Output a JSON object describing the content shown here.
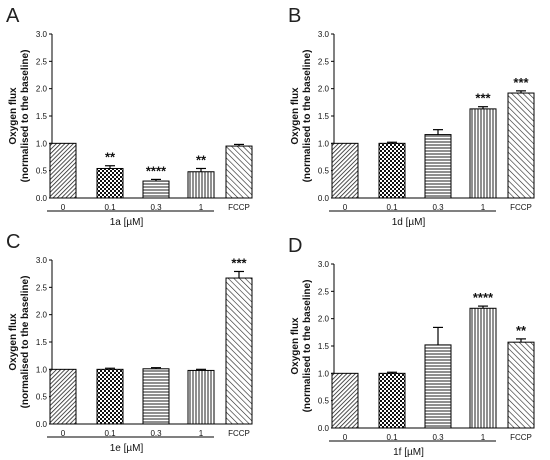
{
  "chart_data": [
    {
      "type": "bar",
      "panel_label": "A",
      "categories": [
        "0",
        "0.1",
        "0.3",
        "1",
        "FCCP"
      ],
      "values": [
        1.0,
        0.54,
        0.31,
        0.48,
        0.95
      ],
      "errors": [
        0.0,
        0.05,
        0.03,
        0.06,
        0.03
      ],
      "significance": [
        "",
        "**",
        "****",
        "**",
        ""
      ],
      "bracket_label": "1a [µM]",
      "ylabel_line1": "Oxygen flux",
      "ylabel_line2": "(normalised to the baseline)",
      "ylim": [
        0,
        3
      ],
      "yticks": [
        "0.0",
        "0.5",
        "1.0",
        "1.5",
        "2.0",
        "2.5",
        "3.0"
      ],
      "patterns": [
        "dense-diagonal",
        "checker",
        "horizontal",
        "vertical",
        "diagonal"
      ]
    },
    {
      "type": "bar",
      "panel_label": "B",
      "categories": [
        "0",
        "0.1",
        "0.3",
        "1",
        "FCCP"
      ],
      "values": [
        1.0,
        1.0,
        1.16,
        1.63,
        1.92
      ],
      "errors": [
        0.0,
        0.02,
        0.09,
        0.04,
        0.04
      ],
      "significance": [
        "",
        "",
        "",
        "***",
        "***"
      ],
      "bracket_label": "1d [µM]",
      "ylabel_line1": "Oxygen flux",
      "ylabel_line2": "(normalised to the baseline)",
      "ylim": [
        0,
        3
      ],
      "yticks": [
        "0.0",
        "0.5",
        "1.0",
        "1.5",
        "2.0",
        "2.5",
        "3.0"
      ],
      "patterns": [
        "dense-diagonal",
        "checker",
        "horizontal",
        "vertical",
        "diagonal"
      ]
    },
    {
      "type": "bar",
      "panel_label": "C",
      "categories": [
        "0",
        "0.1",
        "0.3",
        "1",
        "FCCP"
      ],
      "values": [
        1.0,
        1.0,
        1.01,
        0.98,
        2.67
      ],
      "errors": [
        0.0,
        0.02,
        0.02,
        0.02,
        0.12
      ],
      "significance": [
        "",
        "",
        "",
        "",
        "***"
      ],
      "bracket_label": "1e [µM]",
      "ylabel_line1": "Oxygen flux",
      "ylabel_line2": "(normalised to the baseline)",
      "ylim": [
        0,
        3
      ],
      "yticks": [
        "0.0",
        "0.5",
        "1.0",
        "1.5",
        "2.0",
        "2.5",
        "3.0"
      ],
      "patterns": [
        "dense-diagonal",
        "checker",
        "horizontal",
        "vertical",
        "diagonal"
      ]
    },
    {
      "type": "bar",
      "panel_label": "D",
      "categories": [
        "0",
        "0.1",
        "0.3",
        "1",
        "FCCP"
      ],
      "values": [
        1.0,
        1.0,
        1.52,
        2.19,
        1.57
      ],
      "errors": [
        0.0,
        0.02,
        0.32,
        0.04,
        0.06
      ],
      "significance": [
        "",
        "",
        "",
        "****",
        "**"
      ],
      "bracket_label": "1f [µM]",
      "ylabel_line1": "Oxygen flux",
      "ylabel_line2": "(normalised to the baseline)",
      "ylim": [
        0,
        3
      ],
      "yticks": [
        "0.0",
        "0.5",
        "1.0",
        "1.5",
        "2.0",
        "2.5",
        "3.0"
      ],
      "patterns": [
        "dense-diagonal",
        "checker",
        "horizontal",
        "vertical",
        "diagonal"
      ]
    }
  ]
}
